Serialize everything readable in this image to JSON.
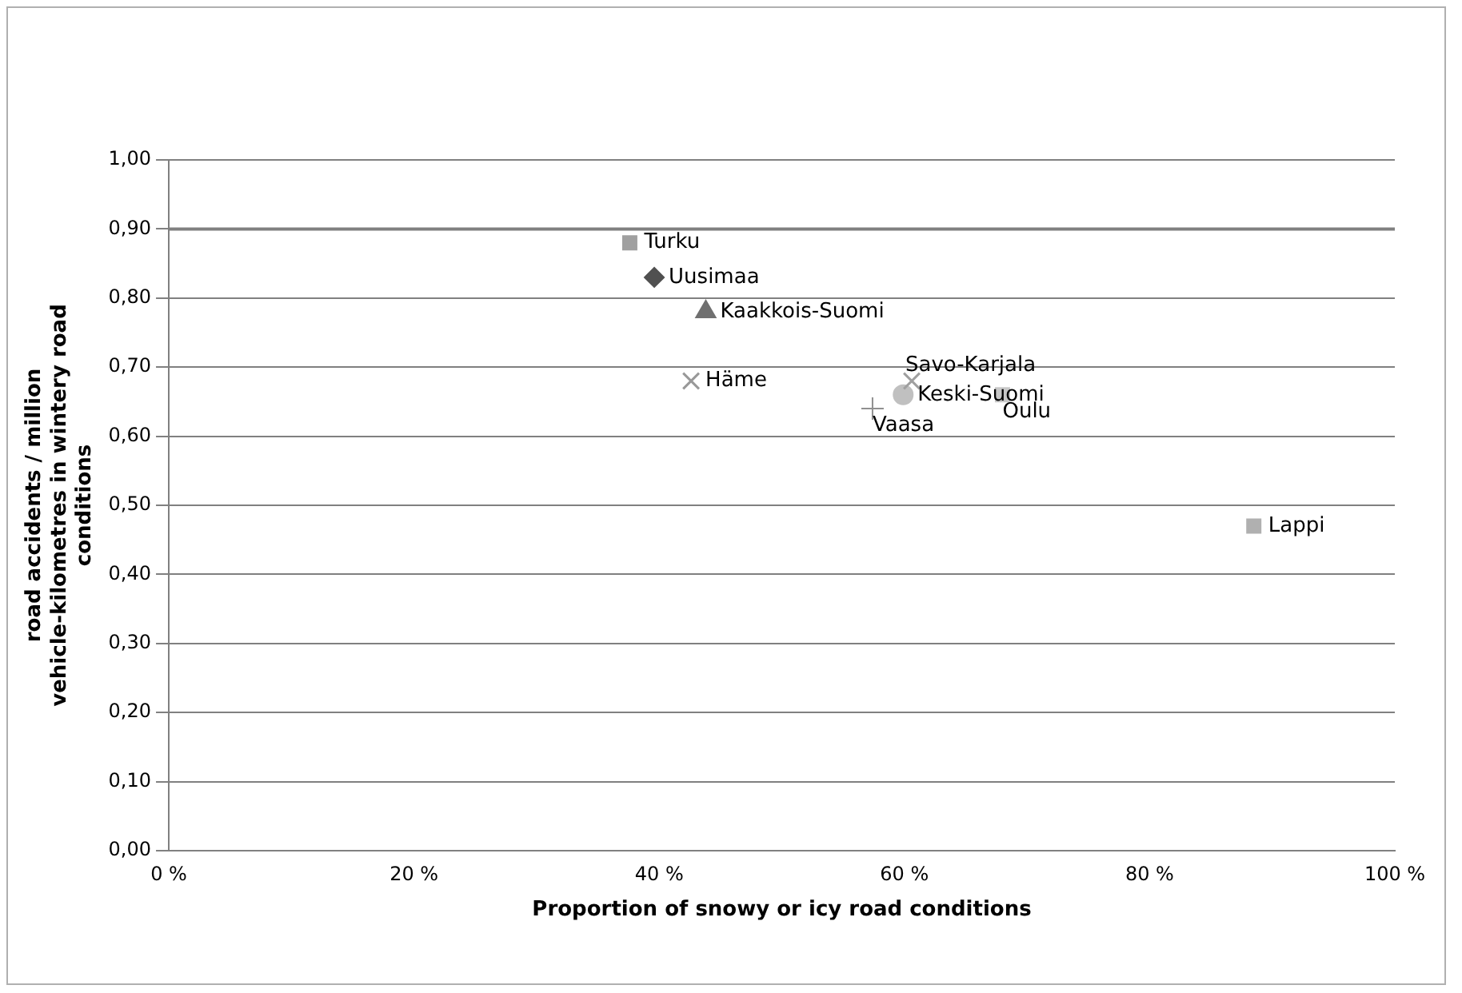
{
  "chart_data": {
    "type": "scatter",
    "xlabel": "Proportion of snowy or icy road conditions",
    "ylabel": "road accidents / million vehicle-kilometres in wintery road conditions",
    "xlim": [
      0,
      100
    ],
    "xticks": [
      {
        "value": 0,
        "label": "0 %"
      },
      {
        "value": 20,
        "label": "20 %"
      },
      {
        "value": 40,
        "label": "40 %"
      },
      {
        "value": 60,
        "label": "60 %"
      },
      {
        "value": 80,
        "label": "80 %"
      },
      {
        "value": 100,
        "label": "100 %"
      }
    ],
    "ylim": [
      0,
      1
    ],
    "yticks": [
      {
        "value": 0,
        "label": "0,00"
      },
      {
        "value": 0.1,
        "label": "0,10"
      },
      {
        "value": 0.2,
        "label": "0,20"
      },
      {
        "value": 0.3,
        "label": "0,30"
      },
      {
        "value": 0.4,
        "label": "0,40"
      },
      {
        "value": 0.5,
        "label": "0,50"
      },
      {
        "value": 0.6,
        "label": "0,60"
      },
      {
        "value": 0.7,
        "label": "0,70"
      },
      {
        "value": 0.8,
        "label": "0,80"
      },
      {
        "value": 0.9,
        "label": "0,90"
      },
      {
        "value": 1,
        "label": "1,00"
      }
    ],
    "grid": "y",
    "legend": false,
    "ref_lines": [
      {
        "axis": "y",
        "value": 0.9,
        "color": "#808080"
      }
    ],
    "series": [
      {
        "name": "Turku",
        "color": "#a0a0a0",
        "marker": "square",
        "x": [
          37.6
        ],
        "values": [
          0.88
        ]
      },
      {
        "name": "Uusimaa",
        "color": "#505050",
        "marker": "diamond",
        "x": [
          39.6
        ],
        "values": [
          0.83
        ]
      },
      {
        "name": "Kaakkois-Suomi",
        "color": "#707070",
        "marker": "triangle",
        "x": [
          43.8
        ],
        "values": [
          0.78
        ]
      },
      {
        "name": "Häme",
        "color": "#999999",
        "marker": "x",
        "x": [
          42.6
        ],
        "values": [
          0.68
        ]
      },
      {
        "name": "Vaasa",
        "color": "#909090",
        "marker": "plus",
        "x": [
          57.4
        ],
        "values": [
          0.64
        ]
      },
      {
        "name": "Savo-Karjala",
        "color": "#a0a0a0",
        "marker": "x",
        "x": [
          60.6
        ],
        "values": [
          0.68
        ]
      },
      {
        "name": "Keski-Suomi",
        "color": "#c0c0c0",
        "marker": "circle",
        "x": [
          59.9
        ],
        "values": [
          0.66
        ]
      },
      {
        "name": "Oulu",
        "color": "#c8c8c8",
        "marker": "square",
        "x": [
          68.0
        ],
        "values": [
          0.66
        ]
      },
      {
        "name": "Lappi",
        "color": "#b0b0b0",
        "marker": "square",
        "x": [
          88.5
        ],
        "values": [
          0.47
        ]
      }
    ]
  }
}
